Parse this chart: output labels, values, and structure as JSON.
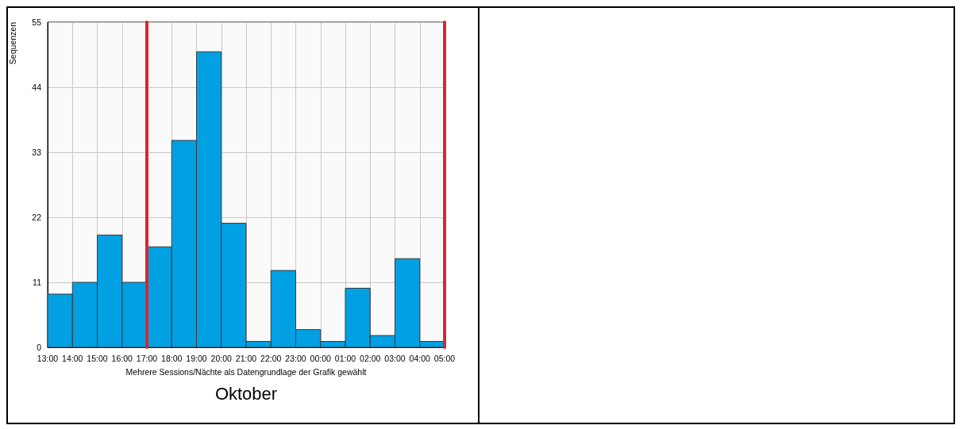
{
  "chart_data": {
    "type": "histogram",
    "title": "Oktober",
    "xlabel": "Mehrere Sessions/Nächte als Datengrundlage der Grafik gewählt",
    "ylabel": "Sequenzen",
    "bins": [
      "--10-01T13:00",
      "--10-01T14:00",
      "--10-01T15:00",
      "--10-01T16:00",
      "--10-01T17:00",
      "--10-01T18:00",
      "--10-01T19:00",
      "--10-01T20:00",
      "--10-01T21:00",
      "--10-01T22:00",
      "--10-01T23:00",
      "--10-02T00:00",
      "--10-02T01:00",
      "--10-02T02:00",
      "--10-02T03:00",
      "--10-02T04:00",
      "--10-02T05:00"
    ],
    "values": [
      9,
      11,
      19,
      11,
      17,
      35,
      50,
      21,
      1,
      13,
      3,
      1,
      10,
      2,
      15,
      1
    ],
    "color": "#00a0e3",
    "xlim": [
      "--10-01T13:00",
      "--10-02T05:00"
    ],
    "xticks": [
      {
        "value": "--10-01T13:00",
        "label": "13:00"
      },
      {
        "value": "--10-01T14:00",
        "label": "14:00"
      },
      {
        "value": "--10-01T15:00",
        "label": "15:00"
      },
      {
        "value": "--10-01T16:00",
        "label": "16:00"
      },
      {
        "value": "--10-01T17:00",
        "label": "17:00"
      },
      {
        "value": "--10-01T18:00",
        "label": "18:00"
      },
      {
        "value": "--10-01T19:00",
        "label": "19:00"
      },
      {
        "value": "--10-01T20:00",
        "label": "20:00"
      },
      {
        "value": "--10-01T21:00",
        "label": "21:00"
      },
      {
        "value": "--10-01T22:00",
        "label": "22:00"
      },
      {
        "value": "--10-01T23:00",
        "label": "23:00"
      },
      {
        "value": "--10-02T00:00",
        "label": "00:00"
      },
      {
        "value": "--10-02T01:00",
        "label": "01:00"
      },
      {
        "value": "--10-02T02:00",
        "label": "02:00"
      },
      {
        "value": "--10-02T03:00",
        "label": "03:00"
      },
      {
        "value": "--10-02T04:00",
        "label": "04:00"
      },
      {
        "value": "--10-02T05:00",
        "label": "05:00"
      }
    ],
    "ylim": [
      0,
      55
    ],
    "yticks": [
      0,
      11,
      22,
      33,
      44,
      55
    ],
    "grid": true,
    "ref_lines": [
      {
        "axis": "x",
        "value": "--10-01T17:00",
        "color": "#d9262e"
      },
      {
        "axis": "x",
        "value": "--10-02T05:00",
        "color": "#d9262e"
      }
    ]
  }
}
